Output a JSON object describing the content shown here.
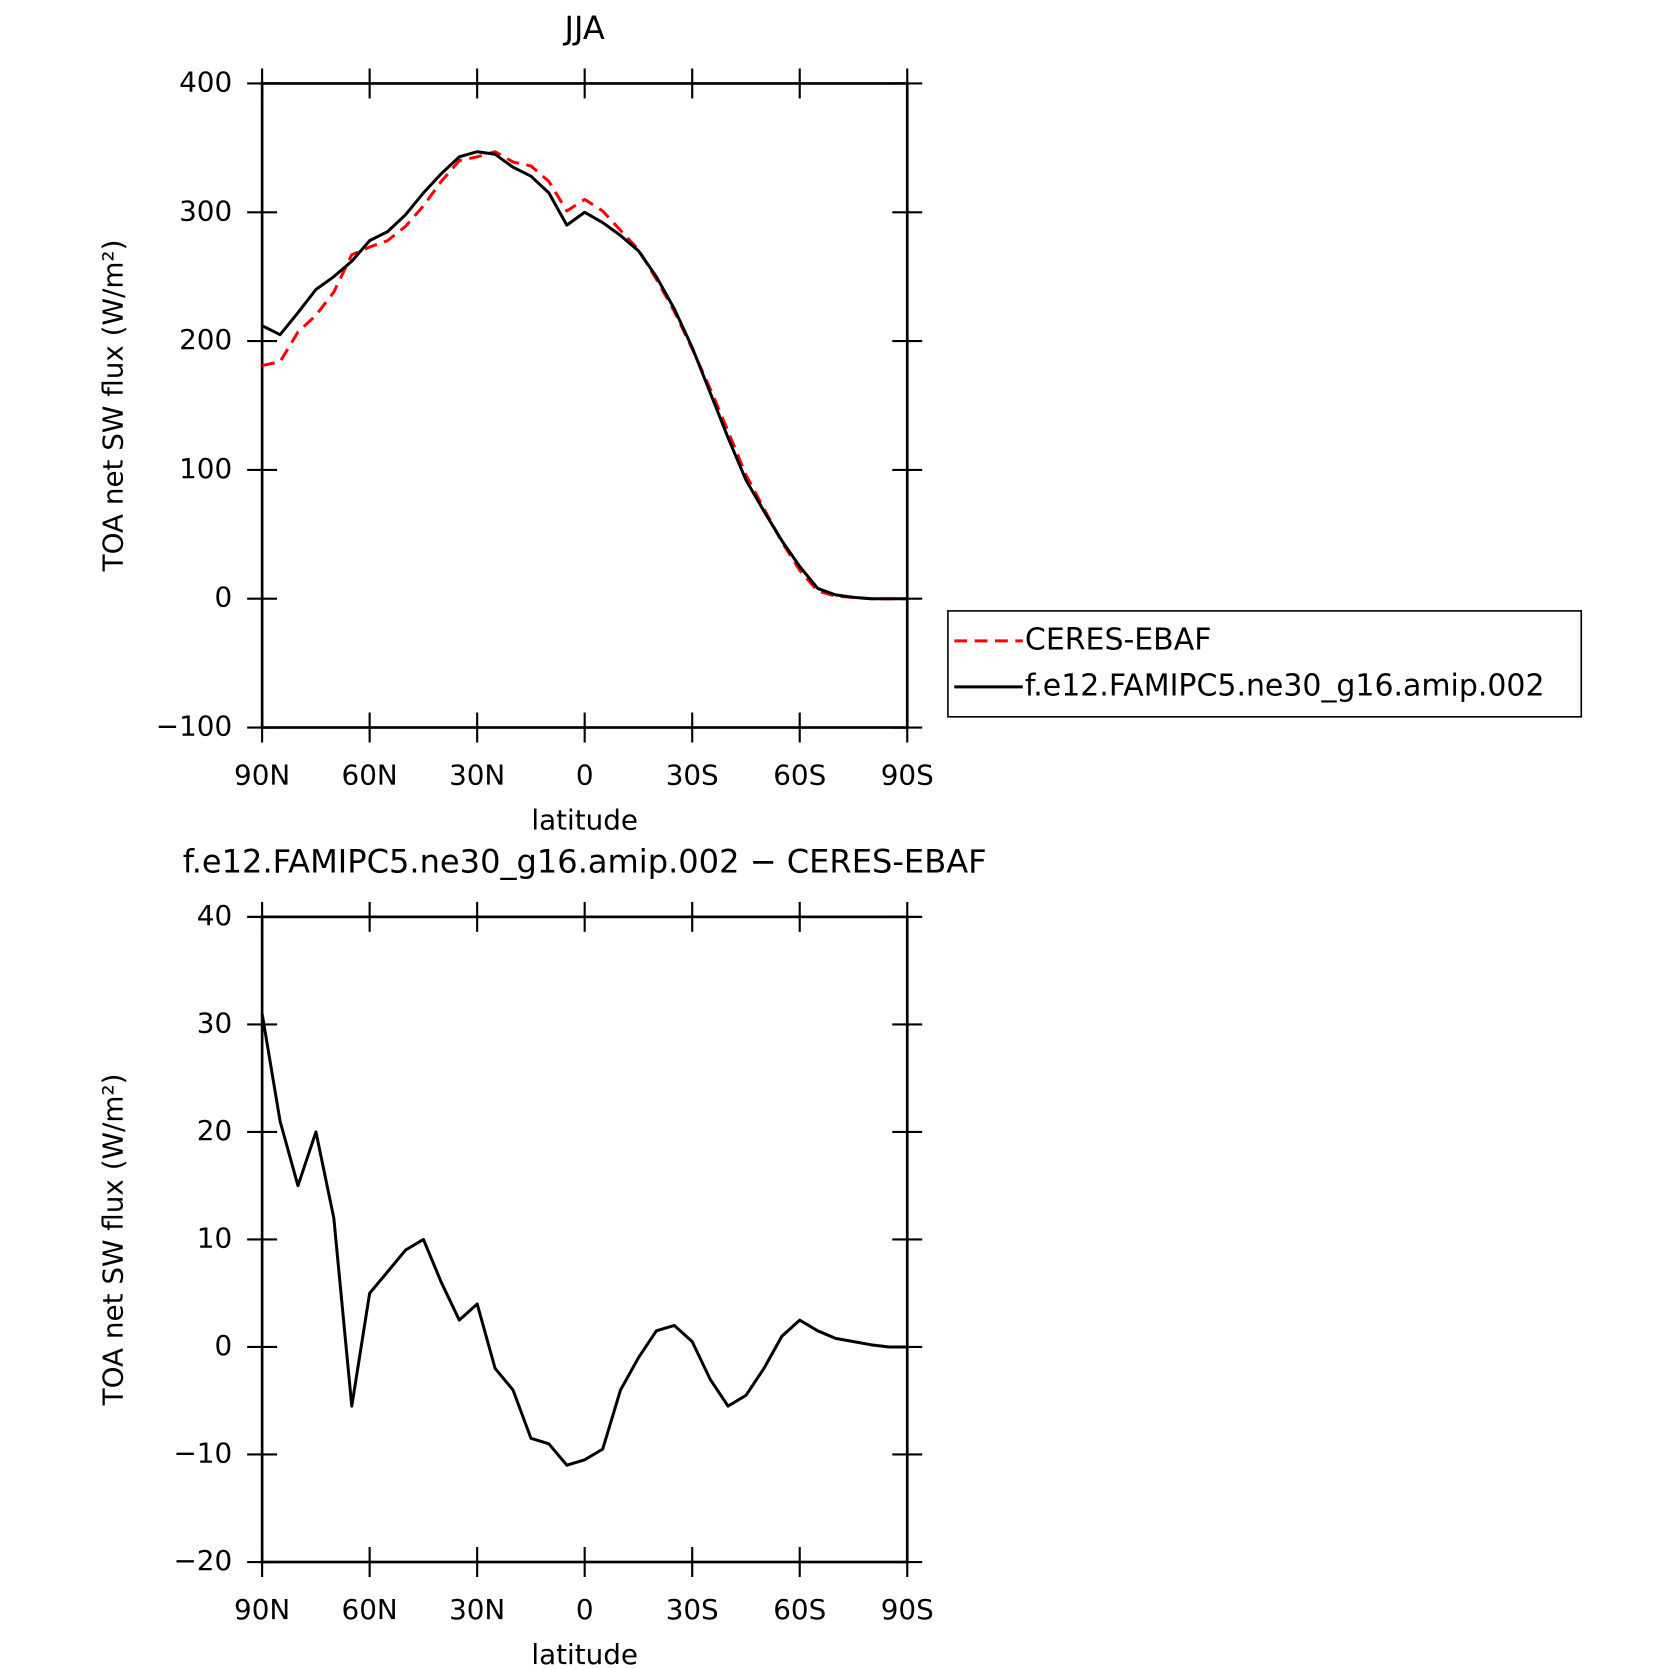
{
  "chart_data": [
    {
      "type": "line",
      "title": "JJA",
      "x_label": "latitude",
      "y_label": "TOA net SW flux (W/m²)",
      "x": [
        90,
        85,
        80,
        75,
        70,
        65,
        60,
        55,
        50,
        45,
        40,
        35,
        30,
        25,
        20,
        15,
        10,
        5,
        0,
        -5,
        -10,
        -15,
        -20,
        -25,
        -30,
        -35,
        -40,
        -45,
        -50,
        -55,
        -60,
        -65,
        -70,
        -75,
        -80,
        -85,
        -90
      ],
      "series": [
        {
          "name": "CERES-EBAF",
          "color": "#ff0000",
          "dash": true,
          "values": [
            181,
            184,
            207,
            220,
            238,
            267,
            273,
            278,
            289,
            305,
            324,
            340,
            343,
            347,
            339,
            336,
            324,
            301,
            310,
            301,
            286,
            271,
            248,
            223,
            194,
            163,
            130,
            96,
            70,
            44,
            22,
            6,
            2,
            1,
            0,
            0,
            0
          ]
        },
        {
          "name": "f.e12.FAMIPC5.ne30_g16.amip.002",
          "color": "#000000",
          "dash": false,
          "values": [
            212,
            205,
            222,
            240,
            250,
            262,
            278,
            285,
            298,
            315,
            330,
            343,
            347,
            345,
            335,
            328,
            315,
            290,
            300,
            292,
            282,
            270,
            250,
            225,
            195,
            160,
            125,
            92,
            68,
            45,
            25,
            8,
            3,
            1,
            0,
            0,
            0
          ]
        }
      ],
      "xlim": [
        90,
        -90
      ],
      "xticks": [
        {
          "value": 90,
          "label": "90N"
        },
        {
          "value": 60,
          "label": "60N"
        },
        {
          "value": 30,
          "label": "30N"
        },
        0,
        {
          "value": -30,
          "label": "30S"
        },
        {
          "value": -60,
          "label": "60S"
        },
        {
          "value": -90,
          "label": "90S"
        }
      ],
      "ylim": [
        -100,
        400
      ],
      "yticks": [
        {
          "value": -100,
          "label": "−100"
        },
        0,
        100,
        200,
        300,
        400
      ],
      "legend": "right"
    },
    {
      "type": "line",
      "title": "f.e12.FAMIPC5.ne30_g16.amip.002 − CERES-EBAF",
      "x_label": "latitude",
      "y_label": "TOA net SW flux (W/m²)",
      "x": [
        90,
        85,
        80,
        75,
        70,
        65,
        60,
        55,
        50,
        45,
        40,
        35,
        30,
        25,
        20,
        15,
        10,
        5,
        0,
        -5,
        -10,
        -15,
        -20,
        -25,
        -30,
        -35,
        -40,
        -45,
        -50,
        -55,
        -60,
        -65,
        -70,
        -75,
        -80,
        -85,
        -90
      ],
      "values": [
        31,
        21,
        15,
        20,
        12,
        -5.5,
        5,
        7,
        9,
        10,
        6,
        2.5,
        4,
        -2,
        -4,
        -8.5,
        -9,
        -11,
        -10.5,
        -9.5,
        -4,
        -1,
        1.5,
        2,
        0.5,
        -3,
        -5.5,
        -4.5,
        -2,
        1,
        2.5,
        1.5,
        0.8,
        0.5,
        0.2,
        0,
        0
      ],
      "color": "#000000",
      "xlim": [
        90,
        -90
      ],
      "xticks": [
        {
          "value": 90,
          "label": "90N"
        },
        {
          "value": 60,
          "label": "60N"
        },
        {
          "value": 30,
          "label": "30N"
        },
        0,
        {
          "value": -30,
          "label": "30S"
        },
        {
          "value": -60,
          "label": "60S"
        },
        {
          "value": -90,
          "label": "90S"
        }
      ],
      "ylim": [
        -20,
        40
      ],
      "yticks": [
        {
          "value": -20,
          "label": "−20"
        },
        {
          "value": -10,
          "label": "−10"
        },
        0,
        10,
        20,
        30,
        40
      ]
    }
  ]
}
